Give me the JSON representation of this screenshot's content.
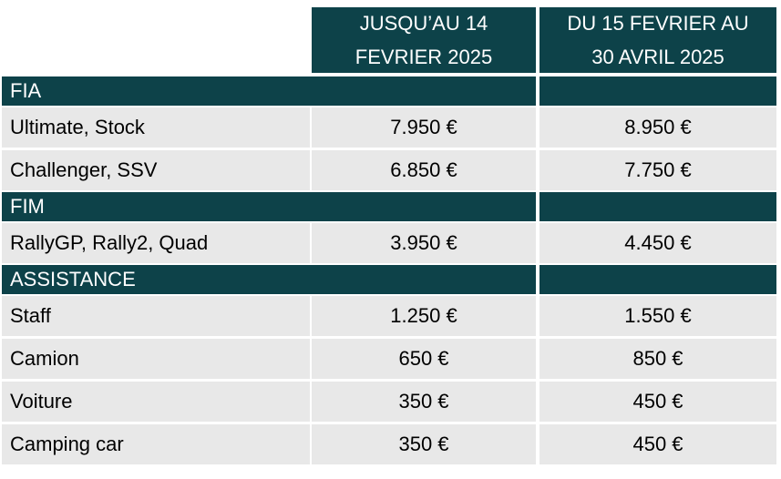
{
  "header": {
    "columns": [
      "JUSQU’AU 14 FEVRIER 2025",
      "DU 15 FEVRIER AU 30 AVRIL 2025"
    ]
  },
  "sections": [
    {
      "title": "FIA",
      "rows": [
        [
          "Ultimate, Stock",
          "7.950 €",
          "8.950 €"
        ],
        [
          "Challenger, SSV",
          "6.850 €",
          "7.750 €"
        ]
      ]
    },
    {
      "title": "FIM",
      "rows": [
        [
          "RallyGP, Rally2, Quad",
          "3.950 €",
          "4.450 €"
        ]
      ]
    },
    {
      "title": "ASSISTANCE",
      "rows": [
        [
          "Staff",
          "1.250 €",
          "1.550 €"
        ],
        [
          "Camion",
          "650 €",
          "850 €"
        ],
        [
          "Voiture",
          "350 €",
          "450 €"
        ],
        [
          "Camping car",
          "350 €",
          "450 €"
        ]
      ]
    }
  ]
}
